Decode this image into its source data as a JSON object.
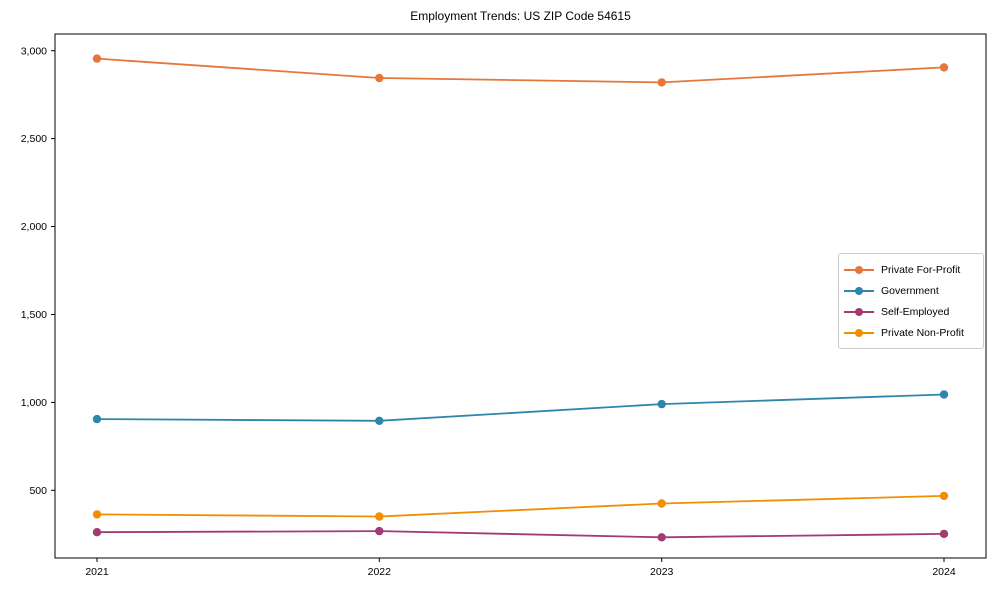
{
  "chart_data": {
    "type": "line",
    "title": "Employment Trends: US ZIP Code 54615",
    "xlabel": "",
    "ylabel": "",
    "x": [
      2021,
      2022,
      2023,
      2024
    ],
    "x_tick_labels": [
      "2021",
      "2022",
      "2023",
      "2024"
    ],
    "y_ticks": [
      500,
      1000,
      1500,
      2000,
      2500,
      3000
    ],
    "y_tick_labels": [
      "500",
      "1,000",
      "1,500",
      "2,000",
      "2,500",
      "3,000"
    ],
    "ylim": [
      115,
      3095
    ],
    "grid": false,
    "legend_position": "center right",
    "marker": "circle",
    "series": [
      {
        "name": "Private For-Profit",
        "color": "#E8763A",
        "values": [
          2955,
          2845,
          2820,
          2905
        ]
      },
      {
        "name": "Government",
        "color": "#2E86AB",
        "values": [
          905,
          895,
          990,
          1045
        ]
      },
      {
        "name": "Self-Employed",
        "color": "#A23B72",
        "values": [
          262,
          268,
          233,
          252
        ]
      },
      {
        "name": "Private Non-Profit",
        "color": "#F18F01",
        "values": [
          363,
          351,
          425,
          468
        ]
      }
    ],
    "axis_color": "#000000",
    "background_color": "#ffffff"
  }
}
